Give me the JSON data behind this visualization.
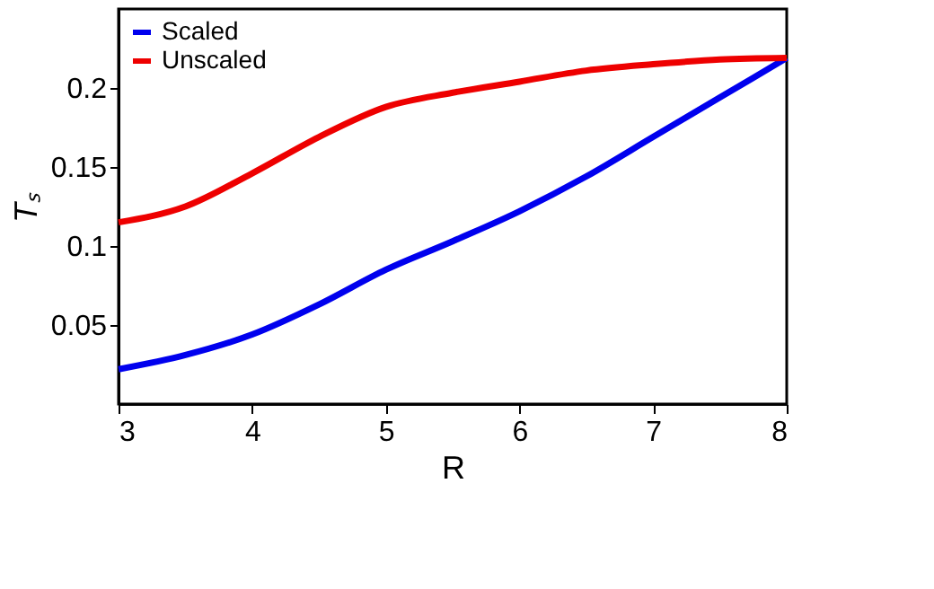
{
  "chart_data": {
    "type": "line",
    "xlabel": "R",
    "ylabel": "Tₛ",
    "x": [
      3,
      3.5,
      4,
      4.5,
      5,
      5.5,
      6,
      6.5,
      7,
      7.5,
      8
    ],
    "series": [
      {
        "name": "Scaled",
        "color": "#0000ee",
        "values": [
          0.022,
          0.031,
          0.044,
          0.063,
          0.085,
          0.103,
          0.122,
          0.144,
          0.169,
          0.194,
          0.219
        ]
      },
      {
        "name": "Unscaled",
        "color": "#ee0000",
        "values": [
          0.115,
          0.125,
          0.146,
          0.169,
          0.188,
          0.197,
          0.204,
          0.211,
          0.215,
          0.218,
          0.219
        ]
      }
    ],
    "xlim": [
      3,
      8
    ],
    "xticks": [
      3,
      4,
      5,
      6,
      7,
      8
    ],
    "ylim": [
      0,
      0.25
    ],
    "yticks": [
      0.05,
      0.1,
      0.15,
      0.2
    ],
    "grid": false,
    "legend": "top left",
    "marker": "none",
    "line_style": "solid"
  }
}
